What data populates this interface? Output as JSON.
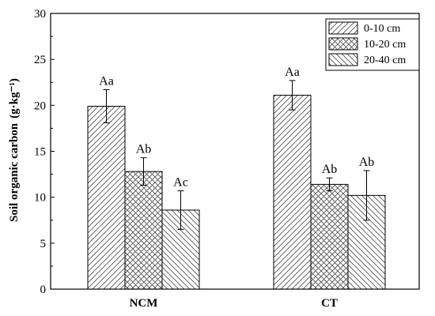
{
  "chart_data": {
    "type": "bar",
    "categories": [
      "NCM",
      "CT"
    ],
    "ylabel": "Soil organic carbon",
    "ylabel_unit": "(g·kg⁻¹)",
    "ylim": [
      0,
      30
    ],
    "yticks": [
      "0",
      "5",
      "10",
      "15",
      "20",
      "25",
      "30"
    ],
    "grid": false,
    "legend_position": "top-right",
    "series": [
      {
        "name": "0-10 cm",
        "pattern": "diagonal-hatch",
        "values": [
          19.9,
          21.1
        ],
        "errors": [
          1.8,
          1.6
        ],
        "labels": [
          "Aa",
          "Aa"
        ]
      },
      {
        "name": "10-20 cm",
        "pattern": "cross-hatch",
        "values": [
          12.8,
          11.4
        ],
        "errors": [
          1.5,
          0.7
        ],
        "labels": [
          "Ab",
          "Ab"
        ]
      },
      {
        "name": "20-40 cm",
        "pattern": "backslash-hatch",
        "values": [
          8.6,
          10.2
        ],
        "errors": [
          2.1,
          2.7
        ],
        "labels": [
          "Ac",
          "Ab"
        ]
      }
    ]
  }
}
